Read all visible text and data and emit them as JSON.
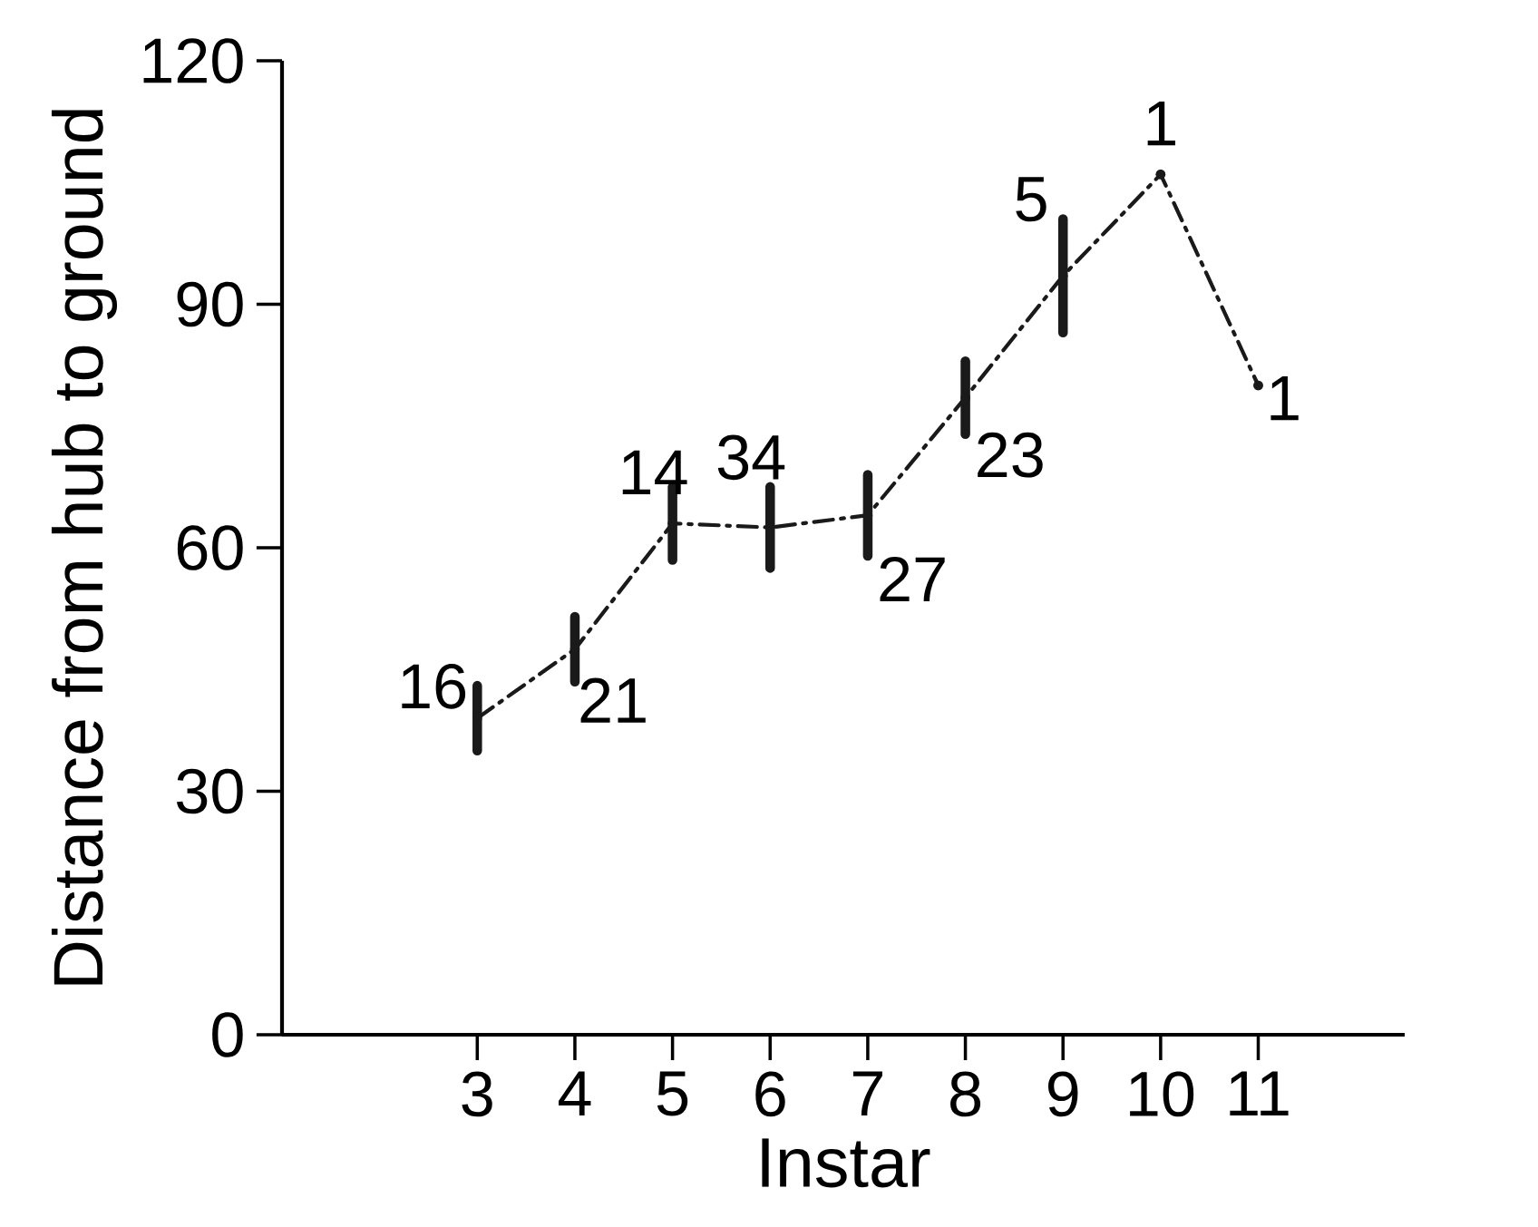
{
  "chart_data": {
    "type": "line",
    "xlabel": "Instar",
    "ylabel": "Distance from hub to ground",
    "x": [
      3,
      4,
      5,
      6,
      7,
      8,
      9,
      10,
      11
    ],
    "values": [
      39,
      47.5,
      63,
      62.5,
      64,
      78.5,
      93.5,
      106,
      80
    ],
    "errors": [
      4,
      4,
      4.5,
      5,
      5,
      4.5,
      7,
      null,
      null
    ],
    "color": "#1a1a1a",
    "line_style": "dashed",
    "marker": "none",
    "grid": false,
    "xlim": [
      1,
      12.5
    ],
    "xticks": [
      3,
      4,
      5,
      6,
      7,
      8,
      9,
      10,
      11
    ],
    "ylim": [
      0,
      120
    ],
    "yticks": [
      0,
      30,
      60,
      90,
      120
    ],
    "annotations": [
      {
        "text": "16",
        "x": 3,
        "y": 39
      },
      {
        "text": "21",
        "x": 4,
        "y": 47.5
      },
      {
        "text": "14",
        "x": 5,
        "y": 63
      },
      {
        "text": "34",
        "x": 6,
        "y": 62.5
      },
      {
        "text": "27",
        "x": 7,
        "y": 64
      },
      {
        "text": "23",
        "x": 8,
        "y": 78.5
      },
      {
        "text": "5",
        "x": 9,
        "y": 93.5
      },
      {
        "text": "1",
        "x": 10,
        "y": 106
      },
      {
        "text": "1",
        "x": 11,
        "y": 80
      }
    ]
  }
}
